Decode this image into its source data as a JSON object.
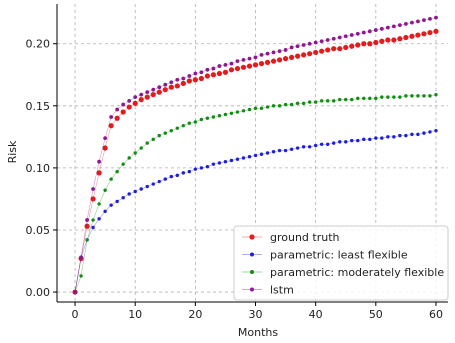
{
  "chart_data": {
    "type": "line",
    "title": "",
    "xlabel": "Months",
    "ylabel": "Risk",
    "xlim": [
      -3,
      62
    ],
    "ylim": [
      -0.008,
      0.232
    ],
    "xticks": [
      0,
      10,
      20,
      30,
      40,
      50,
      60
    ],
    "xtick_labels": [
      "0",
      "10",
      "20",
      "30",
      "40",
      "50",
      "60"
    ],
    "yticks": [
      0.0,
      0.05,
      0.1,
      0.15,
      0.2
    ],
    "ytick_labels": [
      "0.00",
      "0.05",
      "0.10",
      "0.15",
      "0.20"
    ],
    "grid": true,
    "legend_position": "lower-right",
    "x": [
      0,
      1,
      2,
      3,
      4,
      5,
      6,
      7,
      8,
      9,
      10,
      11,
      12,
      13,
      14,
      15,
      16,
      17,
      18,
      19,
      20,
      21,
      22,
      23,
      24,
      25,
      26,
      27,
      28,
      29,
      30,
      31,
      32,
      33,
      34,
      35,
      36,
      37,
      38,
      39,
      40,
      41,
      42,
      43,
      44,
      45,
      46,
      47,
      48,
      49,
      50,
      51,
      52,
      53,
      54,
      55,
      56,
      57,
      58,
      59,
      60
    ],
    "series": [
      {
        "name": "ground truth",
        "color": "#e41a1c",
        "marker_size": 2.6,
        "values": [
          0.0,
          0.027,
          0.053,
          0.075,
          0.096,
          0.116,
          0.134,
          0.14,
          0.145,
          0.149,
          0.152,
          0.155,
          0.157,
          0.159,
          0.161,
          0.163,
          0.165,
          0.166,
          0.168,
          0.17,
          0.171,
          0.172,
          0.174,
          0.175,
          0.176,
          0.177,
          0.179,
          0.18,
          0.181,
          0.182,
          0.183,
          0.184,
          0.185,
          0.186,
          0.187,
          0.188,
          0.189,
          0.19,
          0.191,
          0.192,
          0.193,
          0.194,
          0.195,
          0.196,
          0.196,
          0.197,
          0.198,
          0.199,
          0.2,
          0.2,
          0.201,
          0.202,
          0.203,
          0.203,
          0.204,
          0.205,
          0.206,
          0.207,
          0.208,
          0.209,
          0.21
        ]
      },
      {
        "name": "parametric: least flexible",
        "color": "#1f1fd6",
        "marker_size": 1.7,
        "values": [
          0.0,
          0.028,
          0.042,
          0.052,
          0.059,
          0.065,
          0.07,
          0.073,
          0.076,
          0.079,
          0.081,
          0.083,
          0.085,
          0.087,
          0.089,
          0.091,
          0.093,
          0.094,
          0.096,
          0.097,
          0.099,
          0.1,
          0.101,
          0.103,
          0.104,
          0.105,
          0.106,
          0.107,
          0.108,
          0.109,
          0.11,
          0.111,
          0.112,
          0.113,
          0.114,
          0.114,
          0.115,
          0.116,
          0.117,
          0.117,
          0.118,
          0.119,
          0.119,
          0.12,
          0.121,
          0.121,
          0.122,
          0.122,
          0.123,
          0.123,
          0.124,
          0.124,
          0.125,
          0.125,
          0.126,
          0.126,
          0.127,
          0.127,
          0.128,
          0.129,
          0.13
        ]
      },
      {
        "name": "parametric: moderately flexible",
        "color": "#168a16",
        "marker_size": 1.7,
        "values": [
          0.0,
          0.013,
          0.042,
          0.058,
          0.071,
          0.082,
          0.091,
          0.097,
          0.103,
          0.108,
          0.112,
          0.116,
          0.12,
          0.123,
          0.126,
          0.128,
          0.13,
          0.132,
          0.134,
          0.136,
          0.137,
          0.139,
          0.14,
          0.141,
          0.142,
          0.143,
          0.144,
          0.145,
          0.146,
          0.147,
          0.148,
          0.148,
          0.149,
          0.15,
          0.15,
          0.151,
          0.151,
          0.152,
          0.152,
          0.153,
          0.153,
          0.154,
          0.154,
          0.154,
          0.155,
          0.155,
          0.155,
          0.156,
          0.156,
          0.156,
          0.156,
          0.157,
          0.157,
          0.157,
          0.157,
          0.158,
          0.158,
          0.158,
          0.158,
          0.158,
          0.159
        ]
      },
      {
        "name": "lstm",
        "color": "#8b1a8b",
        "marker_size": 1.9,
        "values": [
          0.0,
          0.028,
          0.058,
          0.083,
          0.105,
          0.124,
          0.141,
          0.147,
          0.151,
          0.154,
          0.157,
          0.159,
          0.161,
          0.163,
          0.165,
          0.167,
          0.169,
          0.171,
          0.172,
          0.174,
          0.176,
          0.177,
          0.179,
          0.18,
          0.182,
          0.183,
          0.184,
          0.186,
          0.187,
          0.188,
          0.189,
          0.191,
          0.192,
          0.193,
          0.194,
          0.195,
          0.197,
          0.198,
          0.199,
          0.2,
          0.201,
          0.202,
          0.203,
          0.204,
          0.205,
          0.206,
          0.207,
          0.208,
          0.209,
          0.21,
          0.211,
          0.212,
          0.213,
          0.214,
          0.215,
          0.216,
          0.217,
          0.218,
          0.219,
          0.22,
          0.221
        ]
      }
    ]
  }
}
